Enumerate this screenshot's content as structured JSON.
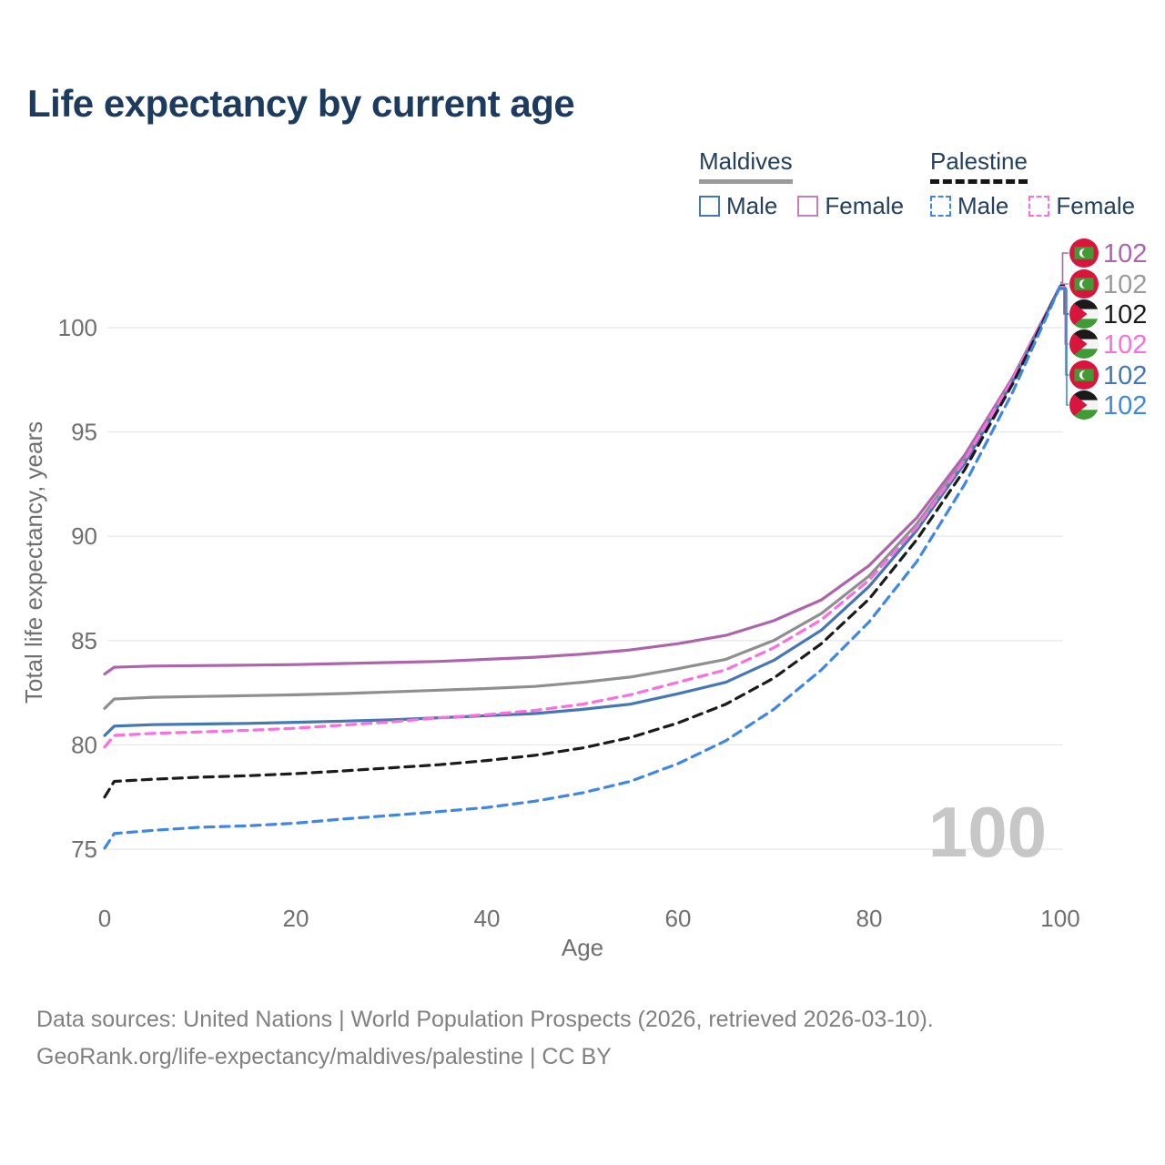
{
  "title": "Life expectancy by current age",
  "watermark": "100",
  "legend": {
    "groups": [
      {
        "title": "Maldives",
        "line_style": "solid",
        "underline_color": "#9a9a9a",
        "items": [
          {
            "label": "Male",
            "color": "#4477b3",
            "dashed": false
          },
          {
            "label": "Female",
            "color": "#c57fc1",
            "dashed": false
          }
        ]
      },
      {
        "title": "Palestine",
        "line_style": "dashed",
        "underline_color": "#161616",
        "items": [
          {
            "label": "Male",
            "color": "#3f87e6",
            "dashed": true
          },
          {
            "label": "Female",
            "color": "#fb6ee0",
            "dashed": true
          }
        ]
      }
    ]
  },
  "footer": {
    "line1": "Data sources: United Nations | World Population Prospects (2026, retrieved 2026-03-10).",
    "line2": "GeoRank.org/life-expectancy/maldives/palestine | CC BY"
  },
  "chart_data": {
    "type": "line",
    "title": "Life expectancy by current age",
    "xlabel": "Age",
    "ylabel": "Total life expectancy, years",
    "xlim": [
      0,
      100
    ],
    "ylim": [
      74.5,
      103
    ],
    "x_ticks": [
      0,
      20,
      40,
      60,
      80,
      100
    ],
    "y_ticks": [
      75,
      80,
      85,
      90,
      95,
      100
    ],
    "grid": "horizontal",
    "legend_position": "top-right",
    "age_indicator": "100",
    "x": [
      0,
      1,
      5,
      10,
      15,
      20,
      25,
      30,
      35,
      40,
      45,
      50,
      55,
      60,
      65,
      70,
      75,
      80,
      85,
      90,
      95,
      100
    ],
    "series": [
      {
        "name": "Maldives Female",
        "country": "Maldives",
        "sex": "Female",
        "color": "#ad64ad",
        "dash": "solid",
        "values": [
          83.4,
          83.72,
          83.78,
          83.8,
          83.82,
          83.85,
          83.9,
          83.95,
          84.0,
          84.1,
          84.2,
          84.35,
          84.55,
          84.85,
          85.25,
          85.95,
          86.95,
          88.6,
          90.9,
          93.9,
          97.6,
          102
        ]
      },
      {
        "name": "Maldives (both sexes)",
        "country": "Maldives",
        "sex": "Both",
        "color": "#8f8f8f",
        "dash": "solid",
        "values": [
          81.75,
          82.2,
          82.28,
          82.32,
          82.36,
          82.4,
          82.46,
          82.54,
          82.62,
          82.7,
          82.8,
          83.0,
          83.25,
          83.65,
          84.1,
          85.0,
          86.3,
          88.1,
          90.6,
          93.7,
          97.5,
          102
        ]
      },
      {
        "name": "Maldives Male",
        "country": "Maldives",
        "sex": "Male",
        "color": "#4477b3",
        "dash": "solid",
        "values": [
          80.45,
          80.9,
          80.97,
          81.0,
          81.03,
          81.08,
          81.14,
          81.2,
          81.3,
          81.4,
          81.5,
          81.7,
          81.95,
          82.45,
          83.0,
          84.05,
          85.5,
          87.6,
          90.3,
          93.5,
          97.4,
          102
        ]
      },
      {
        "name": "Palestine Female",
        "country": "Palestine",
        "sex": "Female",
        "color": "#fb6ee0",
        "dash": "dashed",
        "values": [
          79.9,
          80.45,
          80.55,
          80.62,
          80.7,
          80.8,
          80.95,
          81.1,
          81.3,
          81.45,
          81.65,
          81.95,
          82.4,
          83.0,
          83.6,
          84.65,
          86.0,
          87.9,
          90.45,
          93.65,
          97.5,
          102
        ]
      },
      {
        "name": "Palestine (both sexes)",
        "country": "Palestine",
        "sex": "Both",
        "color": "#1b1b1b",
        "dash": "dashed",
        "values": [
          77.5,
          78.25,
          78.35,
          78.45,
          78.52,
          78.62,
          78.75,
          78.9,
          79.05,
          79.25,
          79.5,
          79.85,
          80.35,
          81.05,
          81.95,
          83.2,
          84.85,
          87.0,
          89.85,
          93.2,
          97.3,
          102
        ]
      },
      {
        "name": "Palestine Male",
        "country": "Palestine",
        "sex": "Male",
        "color": "#3f87e6",
        "dash": "dashed",
        "values": [
          75.05,
          75.75,
          75.9,
          76.05,
          76.12,
          76.25,
          76.45,
          76.62,
          76.8,
          77.0,
          77.3,
          77.7,
          78.25,
          79.1,
          80.2,
          81.7,
          83.6,
          85.9,
          88.8,
          92.5,
          96.9,
          102
        ]
      }
    ],
    "end_labels": [
      {
        "flag": "maldives",
        "value": "102",
        "color": "#ad64ad",
        "series": "Maldives Female"
      },
      {
        "flag": "maldives",
        "value": "102",
        "color": "#9a9a9a",
        "series": "Maldives (both sexes)"
      },
      {
        "flag": "palestine",
        "value": "102",
        "color": "#1b1b1b",
        "series": "Palestine (both sexes)"
      },
      {
        "flag": "palestine",
        "value": "102",
        "color": "#fb6ee0",
        "series": "Palestine Female"
      },
      {
        "flag": "maldives",
        "value": "102",
        "color": "#4477b3",
        "series": "Maldives Male"
      },
      {
        "flag": "palestine",
        "value": "102",
        "color": "#3f87e6",
        "series": "Palestine Male"
      }
    ],
    "end_label_rows_series_index": [
      0,
      1,
      4,
      3,
      2,
      5
    ]
  }
}
